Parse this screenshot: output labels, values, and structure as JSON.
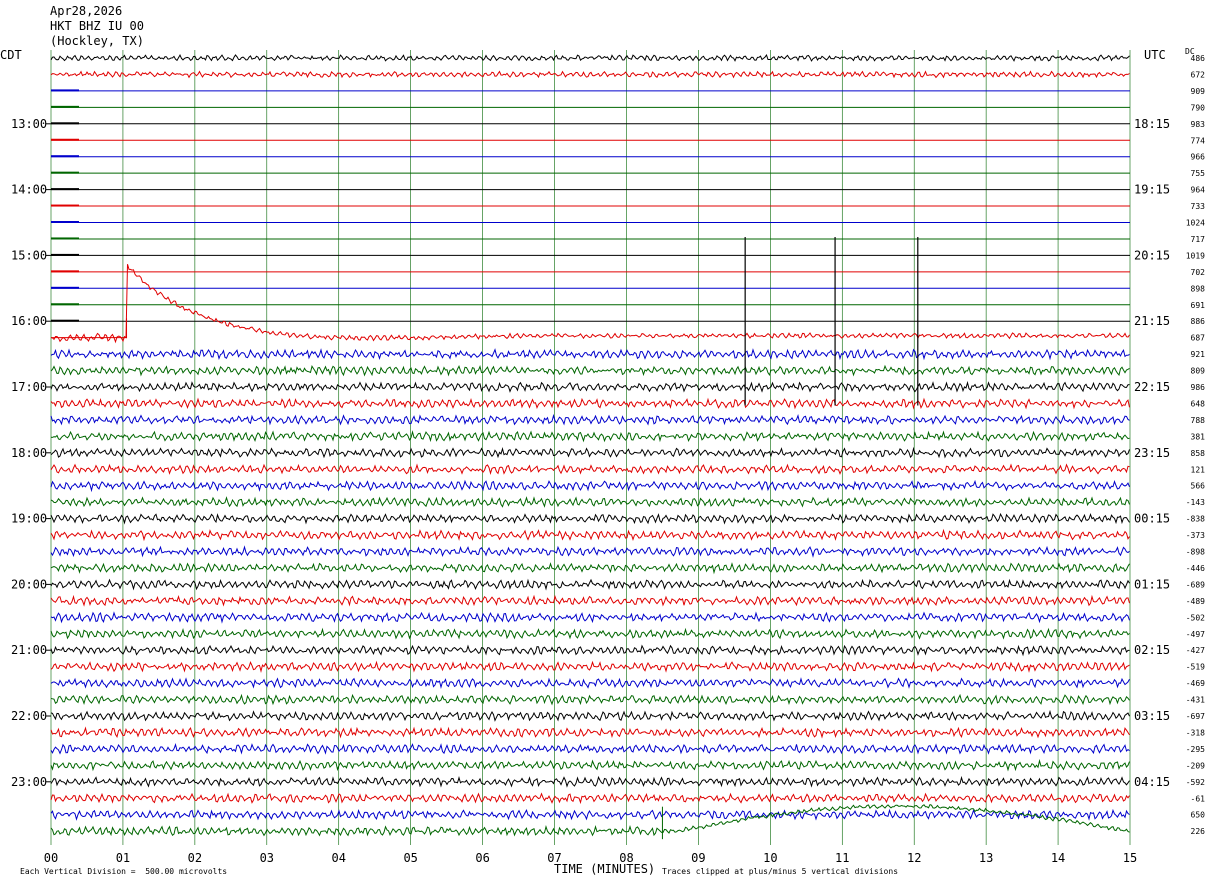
{
  "header": {
    "date": "Apr28,2026",
    "station": "HKT BHZ IU 00",
    "location": "(Hockley, TX)"
  },
  "labels": {
    "local_tz": "CDT",
    "utc_tz": "UTC",
    "dc": "DC",
    "x_axis": "TIME (MINUTES)",
    "scale_note": "Each Vertical Division =  500.00 microvolts",
    "clip_note": "Traces clipped at plus/minus 5 vertical divisions"
  },
  "colors": {
    "trace_cycle": [
      "#000000",
      "#e00000",
      "#0000cc",
      "#006600"
    ],
    "grid": "#006600"
  },
  "chart_data": {
    "type": "line",
    "subtype": "helicorder",
    "xlabel": "TIME (MINUTES)",
    "x_ticks": [
      "00",
      "01",
      "02",
      "03",
      "04",
      "05",
      "06",
      "07",
      "08",
      "09",
      "10",
      "11",
      "12",
      "13",
      "14",
      "15"
    ],
    "xlim": [
      0,
      15
    ],
    "trace_count": 48,
    "minutes_per_trace": 15,
    "local_hour_labels": [
      "13:00",
      "14:00",
      "15:00",
      "16:00",
      "17:00",
      "18:00",
      "19:00",
      "20:00",
      "21:00",
      "22:00",
      "23:00"
    ],
    "utc_hour_labels": [
      "18:15",
      "19:15",
      "20:15",
      "21:15",
      "22:15",
      "23:15",
      "00:15",
      "01:15",
      "02:15",
      "03:15",
      "04:15"
    ],
    "dc_offsets": [
      "486",
      "672",
      "909",
      "790",
      "983",
      "774",
      "966",
      "755",
      "964",
      "733",
      "1024",
      "717",
      "1019",
      "702",
      "898",
      "691",
      "886",
      "687",
      "921",
      "809",
      "986",
      "648",
      "788",
      "381",
      "858",
      "121",
      "566",
      "-143",
      "-838",
      "-373",
      "-898",
      "-446",
      "-689",
      "-489",
      "-502",
      "-497",
      "-427",
      "-519",
      "-469",
      "-431",
      "-697",
      "-318",
      "-295",
      "-209",
      "-592",
      "-61",
      "650",
      "226"
    ],
    "scale_microvolts_per_division": 500.0,
    "clip_divisions": 5,
    "gap_traces": [
      2,
      3,
      4,
      5,
      6,
      7,
      8,
      9,
      10,
      11,
      12,
      13,
      14,
      15,
      16
    ],
    "events": [
      {
        "trace": 17,
        "start_minute": 1.05,
        "description": "step offset with exponential recovery"
      },
      {
        "trace": 47,
        "start_minute": 8.5,
        "description": "clipped step with long recovery"
      }
    ],
    "spikes_minutes": [
      9.65,
      10.9,
      12.05
    ]
  }
}
